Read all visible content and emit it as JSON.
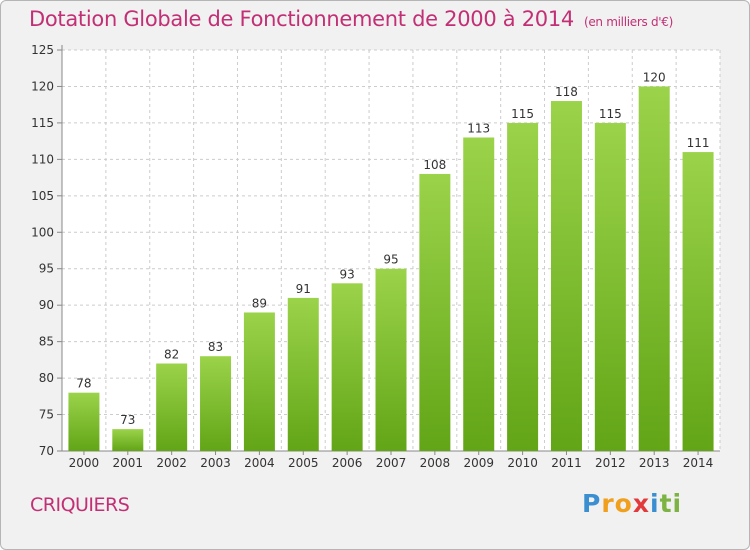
{
  "title": "Dotation Globale de Fonctionnement de 2000 à 2014",
  "title_unit": "(en milliers d'€)",
  "commune": "CRIQUIERS",
  "logo": {
    "letters": [
      "P",
      "r",
      "o",
      "x",
      "i",
      "t",
      "i"
    ],
    "colors": [
      "#3b8fd1",
      "#f0a01c",
      "#f0a01c",
      "#e23a3a",
      "#3b8fd1",
      "#7cb342",
      "#7cb342"
    ]
  },
  "colors": {
    "bar_top": "#9bd34a",
    "bar_bottom": "#62a517",
    "accent": "#c22f75",
    "grid": "#cccccc"
  },
  "chart_data": {
    "type": "bar",
    "categories": [
      "2000",
      "2001",
      "2002",
      "2003",
      "2004",
      "2005",
      "2006",
      "2007",
      "2008",
      "2009",
      "2010",
      "2011",
      "2012",
      "2013",
      "2014"
    ],
    "values": [
      78,
      73,
      82,
      83,
      89,
      91,
      93,
      95,
      108,
      113,
      115,
      118,
      115,
      120,
      111
    ],
    "y_ticks": [
      70,
      75,
      80,
      85,
      90,
      95,
      100,
      105,
      110,
      115,
      120,
      125
    ],
    "ylim": [
      70,
      125
    ],
    "grid": true,
    "data_labels": true
  }
}
